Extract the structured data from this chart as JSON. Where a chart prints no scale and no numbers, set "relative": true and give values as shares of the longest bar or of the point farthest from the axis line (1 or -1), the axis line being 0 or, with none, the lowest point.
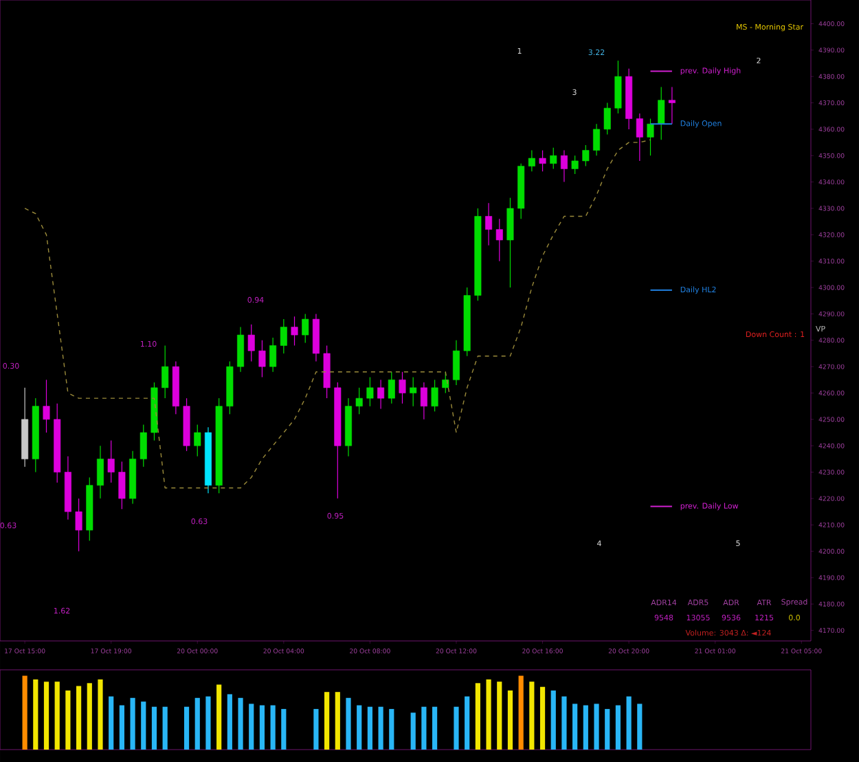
{
  "chart_data": [
    {
      "type": "candlestick",
      "categories": [
        "17 Oct 15:00",
        null,
        null,
        null,
        null,
        null,
        null,
        null,
        "17 Oct 19:00",
        null,
        null,
        null,
        null,
        null,
        null,
        null,
        "20 Oct 00:00",
        null,
        null,
        null,
        null,
        null,
        null,
        null,
        "20 Oct 04:00",
        null,
        null,
        null,
        null,
        null,
        null,
        null,
        "20 Oct 08:00",
        null,
        null,
        null,
        null,
        null,
        null,
        null,
        "20 Oct 12:00",
        null,
        null,
        null,
        null,
        null,
        null,
        null,
        "20 Oct 16:00",
        null,
        null,
        null,
        null,
        null,
        null,
        null,
        "20 Oct 20:00",
        null,
        null,
        null,
        null,
        null,
        null,
        null,
        "21 Oct 01:00",
        null,
        null,
        null,
        null,
        null,
        null,
        null,
        "21 Oct 05:00"
      ],
      "ohlc": [
        [
          4250,
          4262,
          4232,
          4235
        ],
        [
          4235,
          4258,
          4230,
          4255
        ],
        [
          4255,
          4265,
          4245,
          4250
        ],
        [
          4250,
          4256,
          4226,
          4230
        ],
        [
          4230,
          4236,
          4212,
          4215
        ],
        [
          4215,
          4220,
          4200,
          4208
        ],
        [
          4208,
          4228,
          4204,
          4225
        ],
        [
          4225,
          4240,
          4220,
          4235
        ],
        [
          4235,
          4242,
          4226,
          4230
        ],
        [
          4230,
          4234,
          4216,
          4220
        ],
        [
          4220,
          4238,
          4218,
          4235
        ],
        [
          4235,
          4248,
          4232,
          4245
        ],
        [
          4245,
          4264,
          4242,
          4262
        ],
        [
          4262,
          4278,
          4258,
          4270
        ],
        [
          4270,
          4272,
          4252,
          4255
        ],
        [
          4255,
          4258,
          4238,
          4240
        ],
        [
          4240,
          4248,
          4236,
          4245
        ],
        [
          4245,
          4247,
          4222,
          4225
        ],
        [
          4225,
          4258,
          4222,
          4255
        ],
        [
          4255,
          4272,
          4252,
          4270
        ],
        [
          4270,
          4285,
          4268,
          4282
        ],
        [
          4282,
          4286,
          4272,
          4276
        ],
        [
          4276,
          4280,
          4266,
          4270
        ],
        [
          4270,
          4281,
          4268,
          4278
        ],
        [
          4278,
          4288,
          4275,
          4285
        ],
        [
          4285,
          4289,
          4278,
          4282
        ],
        [
          4282,
          4290,
          4279,
          4288
        ],
        [
          4288,
          4290,
          4272,
          4275
        ],
        [
          4275,
          4278,
          4258,
          4262
        ],
        [
          4262,
          4264,
          4220,
          4240
        ],
        [
          4240,
          4258,
          4236,
          4255
        ],
        [
          4255,
          4262,
          4252,
          4258
        ],
        [
          4258,
          4266,
          4255,
          4262
        ],
        [
          4262,
          4265,
          4254,
          4258
        ],
        [
          4258,
          4268,
          4256,
          4265
        ],
        [
          4265,
          4268,
          4256,
          4260
        ],
        [
          4260,
          4266,
          4255,
          4262
        ],
        [
          4262,
          4264,
          4250,
          4255
        ],
        [
          4255,
          4265,
          4253,
          4262
        ],
        [
          4262,
          4268,
          4260,
          4265
        ],
        [
          4265,
          4280,
          4263,
          4276
        ],
        [
          4276,
          4300,
          4274,
          4297
        ],
        [
          4297,
          4330,
          4295,
          4327
        ],
        [
          4327,
          4332,
          4316,
          4322
        ],
        [
          4322,
          4326,
          4310,
          4318
        ],
        [
          4318,
          4334,
          4300,
          4330
        ],
        [
          4330,
          4347,
          4326,
          4346
        ],
        [
          4346,
          4352,
          4344,
          4349
        ],
        [
          4349,
          4352,
          4344,
          4347
        ],
        [
          4347,
          4353,
          4345,
          4350
        ],
        [
          4350,
          4352,
          4340,
          4345
        ],
        [
          4345,
          4350,
          4343,
          4348
        ],
        [
          4348,
          4354,
          4346,
          4352
        ],
        [
          4352,
          4362,
          4350,
          4360
        ],
        [
          4360,
          4370,
          4358,
          4368
        ],
        [
          4368,
          4386,
          4366,
          4380
        ],
        [
          4380,
          4383,
          4360,
          4364
        ],
        [
          4364,
          4366,
          4348,
          4357
        ],
        [
          4357,
          4364,
          4350,
          4362
        ],
        [
          4362,
          4376,
          4356,
          4371
        ],
        [
          4371,
          4376,
          4362,
          4370
        ],
        null,
        null,
        null,
        null,
        null,
        null,
        null,
        null,
        null,
        null,
        null,
        null
      ],
      "colors": [
        "#c8c8c8",
        "#00dd00",
        "#dd00dd",
        "#dd00dd",
        "#dd00dd",
        "#dd00dd",
        "#00dd00",
        "#00dd00",
        "#dd00dd",
        "#dd00dd",
        "#00dd00",
        "#00dd00",
        "#00dd00",
        "#00dd00",
        "#dd00dd",
        "#dd00dd",
        "#00dd00",
        "#00e5ff",
        "#00dd00",
        "#00dd00",
        "#00dd00",
        "#dd00dd",
        "#dd00dd",
        "#00dd00",
        "#00dd00",
        "#dd00dd",
        "#00dd00",
        "#dd00dd",
        "#dd00dd",
        "#dd00dd",
        "#00dd00",
        "#00dd00",
        "#00dd00",
        "#dd00dd",
        "#00dd00",
        "#dd00dd",
        "#00dd00",
        "#dd00dd",
        "#00dd00",
        "#00dd00",
        "#00dd00",
        "#00dd00",
        "#00dd00",
        "#dd00dd",
        "#dd00dd",
        "#00dd00",
        "#00dd00",
        "#00dd00",
        "#dd00dd",
        "#00dd00",
        "#dd00dd",
        "#00dd00",
        "#00dd00",
        "#00dd00",
        "#00dd00",
        "#00dd00",
        "#dd00dd",
        "#dd00dd",
        "#00dd00",
        "#00dd00",
        "#dd00dd",
        null,
        null,
        null,
        null,
        null,
        null,
        null,
        null,
        null,
        null,
        null,
        null
      ],
      "series": [
        {
          "type": "line",
          "color": "#9a8a3a",
          "line_style": "dashed",
          "values": [
            4330,
            4328,
            4320,
            4290,
            4260,
            4258,
            4258,
            4258,
            4258,
            4258,
            4258,
            4258,
            4258,
            4224,
            4224,
            4224,
            4224,
            4224,
            4224,
            4224,
            4224,
            4228,
            4235,
            4240,
            4245,
            4250,
            4258,
            4268,
            4268,
            4268,
            4268,
            4268,
            4268,
            4268,
            4268,
            4268,
            4268,
            4268,
            4268,
            4268,
            4245,
            4262,
            4274,
            4274,
            4274,
            4274,
            4285,
            4300,
            4312,
            4320,
            4327,
            4327,
            4327,
            4335,
            4345,
            4352,
            4355,
            4355,
            4356,
            null,
            null,
            null,
            null,
            null,
            null,
            null,
            null,
            null,
            null,
            null,
            null,
            null,
            null
          ]
        }
      ],
      "ylim": [
        4166,
        4409
      ],
      "yticks": [
        {
          "value": 4170,
          "label": "4170.00"
        },
        {
          "value": 4180,
          "label": "4180.00"
        },
        {
          "value": 4190,
          "label": "4190.00"
        },
        {
          "value": 4200,
          "label": "4200.00"
        },
        {
          "value": 4210,
          "label": "4210.00"
        },
        {
          "value": 4220,
          "label": "4220.00"
        },
        {
          "value": 4230,
          "label": "4230.00"
        },
        {
          "value": 4240,
          "label": "4240.00"
        },
        {
          "value": 4250,
          "label": "4250.00"
        },
        {
          "value": 4260,
          "label": "4260.00"
        },
        {
          "value": 4270,
          "label": "4270.00"
        },
        {
          "value": 4280,
          "label": "4280.00"
        },
        {
          "value": 4290,
          "label": "4290.00"
        },
        {
          "value": 4300,
          "label": "4300.00"
        },
        {
          "value": 4310,
          "label": "4310.00"
        },
        {
          "value": 4320,
          "label": "4320.00"
        },
        {
          "value": 4330,
          "label": "4330.00"
        },
        {
          "value": 4340,
          "label": "4340.00"
        },
        {
          "value": 4350,
          "label": "4350.00"
        },
        {
          "value": 4360,
          "label": "4360.00"
        },
        {
          "value": 4370,
          "label": "4370.00"
        },
        {
          "value": 4380,
          "label": "4380.00"
        },
        {
          "value": 4390,
          "label": "4390.00"
        },
        {
          "value": 4400,
          "label": "4400.00"
        }
      ],
      "ref_lines": [
        {
          "axis": "y",
          "value": 4382,
          "label": "prev. Daily High",
          "color": "#d020d0"
        },
        {
          "axis": "y",
          "value": 4362,
          "label": "Daily Open",
          "color": "#2080e0"
        },
        {
          "axis": "y",
          "value": 4299,
          "label": "Daily HL2",
          "color": "#2080e0"
        },
        {
          "axis": "y",
          "value": 4217,
          "label": "prev. Daily Low",
          "color": "#d020d0"
        }
      ],
      "annotations": [
        "MS - Morning Star",
        "1",
        "2",
        "3",
        "4",
        "5",
        "3.22",
        "1.10",
        "0.94",
        "0.30",
        "0.63",
        "0.63",
        "0.95",
        "1.62",
        "Down Count : 1",
        "VP",
        "ADR14",
        "ADR5",
        "ADR",
        "ATR",
        "Spread",
        "9548",
        "13055",
        "9536",
        "1215",
        "0.0",
        "Volume: 3043 Δ: ◄124"
      ]
    },
    {
      "type": "bar",
      "relative": true,
      "categories": [
        null,
        null,
        null,
        null,
        null,
        null,
        null,
        null,
        null,
        null,
        null,
        null,
        null,
        null,
        null,
        null,
        null,
        null,
        null,
        null,
        null,
        null,
        null,
        null,
        null,
        null,
        null,
        null,
        null,
        null,
        null,
        null,
        null,
        null,
        null,
        null,
        null,
        null,
        null,
        null,
        null,
        null,
        null,
        null,
        null,
        null,
        null,
        null,
        null,
        null,
        null,
        null,
        null,
        null,
        null,
        null,
        null,
        null,
        null,
        null,
        null,
        null,
        null,
        null,
        null,
        null,
        null,
        null,
        null,
        null,
        null,
        null,
        null
      ],
      "values": [
        1.0,
        0.95,
        0.92,
        0.92,
        0.8,
        0.86,
        0.9,
        0.95,
        0.72,
        0.6,
        0.7,
        0.65,
        0.58,
        0.58,
        null,
        0.58,
        0.7,
        0.72,
        0.88,
        0.75,
        0.7,
        0.62,
        0.6,
        0.6,
        0.55,
        null,
        null,
        0.55,
        0.78,
        0.78,
        0.7,
        0.6,
        0.58,
        0.58,
        0.55,
        null,
        0.5,
        0.58,
        0.58,
        null,
        0.58,
        0.72,
        0.9,
        0.95,
        0.92,
        0.8,
        1.0,
        0.92,
        0.85,
        0.8,
        0.72,
        0.62,
        0.6,
        0.62,
        0.55,
        0.6,
        0.72,
        0.62,
        null,
        null,
        null,
        null,
        null,
        null,
        null,
        null,
        null,
        null,
        null,
        null,
        null,
        null,
        null
      ],
      "colors": [
        "#ff8c00",
        "#f2e600",
        "#f2e600",
        "#f2e600",
        "#f2e600",
        "#f2e600",
        "#f2e600",
        "#f2e600",
        "#29b6f6",
        "#29b6f6",
        "#29b6f6",
        "#29b6f6",
        "#29b6f6",
        "#29b6f6",
        null,
        "#29b6f6",
        "#29b6f6",
        "#29b6f6",
        "#f2e600",
        "#29b6f6",
        "#29b6f6",
        "#29b6f6",
        "#29b6f6",
        "#29b6f6",
        "#29b6f6",
        null,
        null,
        "#29b6f6",
        "#f2e600",
        "#f2e600",
        "#29b6f6",
        "#29b6f6",
        "#29b6f6",
        "#29b6f6",
        "#29b6f6",
        null,
        "#29b6f6",
        "#29b6f6",
        "#29b6f6",
        null,
        "#29b6f6",
        "#29b6f6",
        "#f2e600",
        "#f2e600",
        "#f2e600",
        "#f2e600",
        "#ff8c00",
        "#f2e600",
        "#f2e600",
        "#29b6f6",
        "#29b6f6",
        "#29b6f6",
        "#29b6f6",
        "#29b6f6",
        "#29b6f6",
        "#29b6f6",
        "#29b6f6",
        "#29b6f6",
        null,
        null,
        null,
        null,
        null,
        null,
        null,
        null,
        null,
        null,
        null,
        null,
        null,
        null,
        null
      ]
    }
  ]
}
